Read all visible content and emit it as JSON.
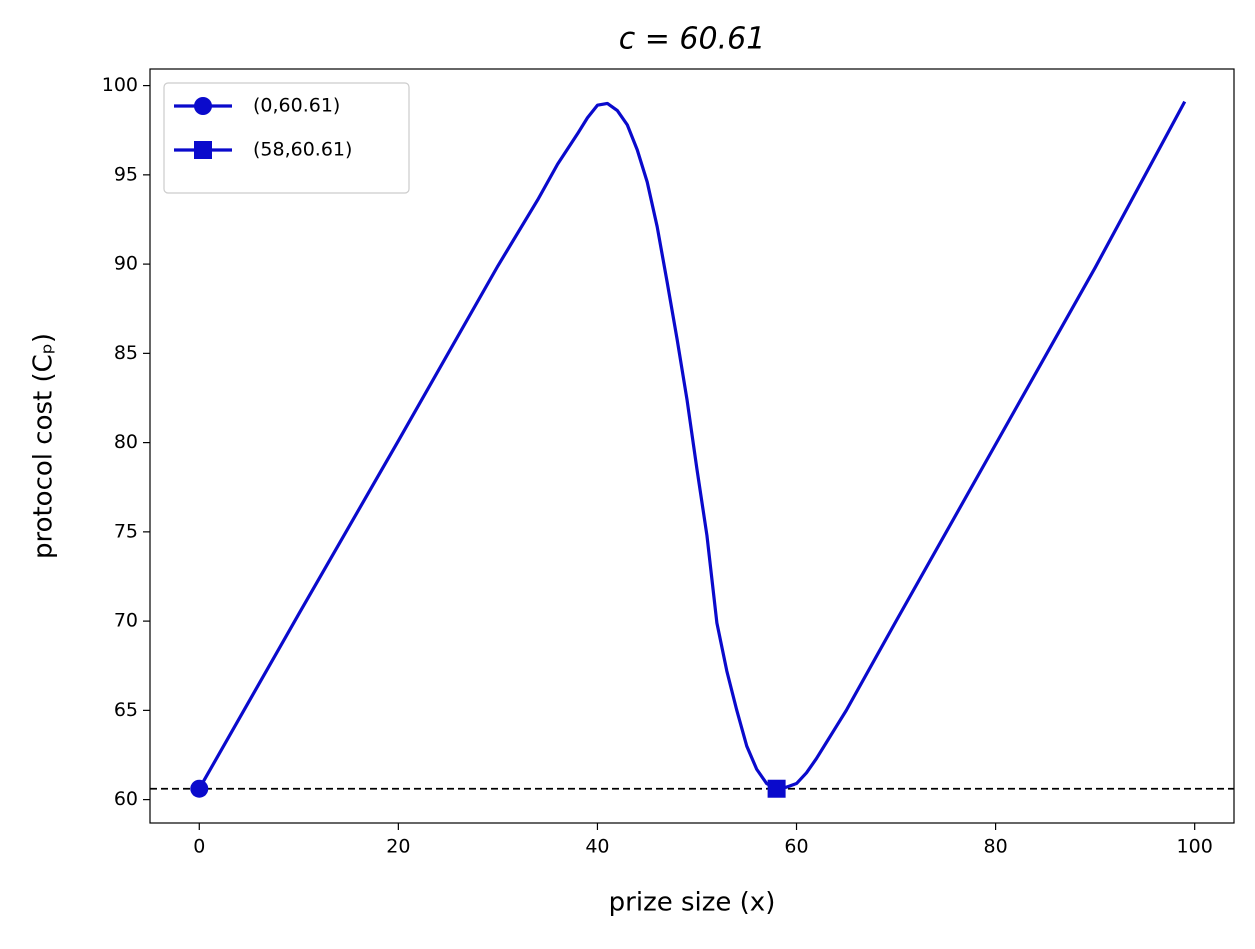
{
  "chart_data": {
    "type": "line",
    "title": "c = 60.61",
    "xlabel": "prize size (x)",
    "ylabel": "protocol cost (Cₚ)",
    "xlim": [
      -4.95,
      103.95
    ],
    "ylim": [
      58.69,
      100.93
    ],
    "xticks": [
      0,
      20,
      40,
      60,
      80,
      100
    ],
    "yticks": [
      60,
      65,
      70,
      75,
      80,
      85,
      90,
      95,
      100
    ],
    "hline": {
      "value": 60.61,
      "color": "#000000",
      "style": "dashed"
    },
    "legend": "upper left",
    "series": [
      {
        "color": "#0a0acc",
        "marker": "none",
        "x": [
          0,
          10,
          20,
          30,
          34,
          36,
          38,
          39,
          40,
          41,
          42,
          43,
          44,
          45,
          46,
          47,
          48,
          49,
          50,
          51,
          52,
          53,
          54,
          55,
          56,
          57,
          58,
          59,
          60,
          61,
          62,
          63,
          64,
          65,
          70,
          80,
          90,
          99
        ],
        "values": [
          60.61,
          70.4,
          80.1,
          89.9,
          93.6,
          95.6,
          97.3,
          98.2,
          98.9,
          99.0,
          98.6,
          97.8,
          96.4,
          94.6,
          92.1,
          89.0,
          85.8,
          82.4,
          78.5,
          74.8,
          69.9,
          67.2,
          65.0,
          63.0,
          61.7,
          60.9,
          60.61,
          60.7,
          60.9,
          61.5,
          62.3,
          63.2,
          64.1,
          65.0,
          70.0,
          79.9,
          89.8,
          99.1
        ]
      },
      {
        "name": "(0,60.61)",
        "color": "#0a0acc",
        "marker": "circle",
        "x": [
          0
        ],
        "values": [
          60.61
        ]
      },
      {
        "name": "(58,60.61)",
        "color": "#0a0acc",
        "marker": "square",
        "x": [
          58
        ],
        "values": [
          60.61
        ]
      }
    ]
  }
}
